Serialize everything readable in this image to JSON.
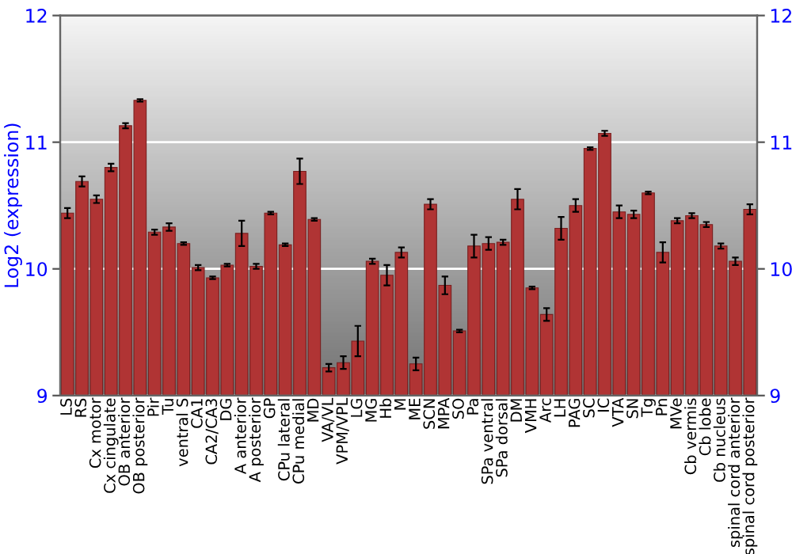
{
  "chart_data": {
    "type": "bar",
    "ylabel": "Log2 (expression)",
    "categories": [
      "LS",
      "RS",
      "Cx motor",
      "Cx cingulate",
      "OB anterior",
      "OB posterior",
      "Pir",
      "Tu",
      "ventral S",
      "CA1",
      "CA2/CA3",
      "DG",
      "A anterior",
      "A posterior",
      "GP",
      "CPu lateral",
      "CPu medial",
      "MD",
      "VA/VL",
      "VPM/VPL",
      "LG",
      "MG",
      "Hb",
      "M",
      "ME",
      "SCN",
      "MPA",
      "SO",
      "Pa",
      "SPa ventral",
      "SPa dorsal",
      "DM",
      "VMH",
      "Arc",
      "LH",
      "PAG",
      "SC",
      "IC",
      "VTA",
      "SN",
      "Tg",
      "Pn",
      "MVe",
      "Cb vermis",
      "Cb lobe",
      "Cb nucleus",
      "spinal cord anterior",
      "spinal cord posterior"
    ],
    "values": [
      10.44,
      10.69,
      10.55,
      10.8,
      11.13,
      11.33,
      10.29,
      10.33,
      10.2,
      10.01,
      9.93,
      10.03,
      10.28,
      10.02,
      10.44,
      10.19,
      10.77,
      10.39,
      9.22,
      9.26,
      9.43,
      10.06,
      9.95,
      10.13,
      9.25,
      10.51,
      9.87,
      9.51,
      10.18,
      10.2,
      10.21,
      10.55,
      9.85,
      9.64,
      10.32,
      10.5,
      10.95,
      11.07,
      10.45,
      10.43,
      10.6,
      10.13,
      10.38,
      10.42,
      10.35,
      10.18,
      10.06,
      10.47
    ],
    "errors": [
      0.04,
      0.04,
      0.03,
      0.03,
      0.02,
      0.01,
      0.02,
      0.03,
      0.01,
      0.02,
      0.01,
      0.01,
      0.1,
      0.02,
      0.01,
      0.01,
      0.1,
      0.01,
      0.03,
      0.05,
      0.12,
      0.02,
      0.08,
      0.04,
      0.05,
      0.04,
      0.07,
      0.01,
      0.09,
      0.05,
      0.02,
      0.08,
      0.01,
      0.05,
      0.09,
      0.05,
      0.01,
      0.02,
      0.05,
      0.03,
      0.01,
      0.08,
      0.02,
      0.02,
      0.02,
      0.02,
      0.03,
      0.04
    ],
    "color": "#b03434",
    "ylim": [
      9,
      12
    ],
    "yticks": [
      9,
      10,
      11,
      12
    ],
    "y2lim": [
      9,
      12
    ],
    "y2ticks": [
      9,
      10,
      11,
      12
    ],
    "grid": "y"
  }
}
